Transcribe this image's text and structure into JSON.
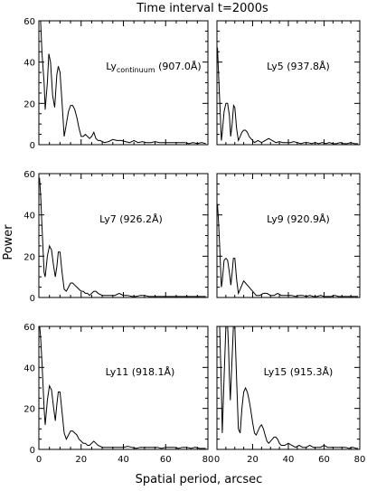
{
  "title": "Time interval t=2000s",
  "ylabel": "Power",
  "xlabel": "Spatial period, arcsec",
  "chart_data": [
    {
      "type": "line",
      "label": "Ly",
      "label_sub": "continuum",
      "label_suffix": " (907.0Å)",
      "xlim": [
        0,
        80
      ],
      "ylim": [
        0,
        60
      ],
      "xticks": [
        "0",
        "20",
        "40",
        "60",
        "80"
      ],
      "yticks": [
        "0",
        "20",
        "40",
        "60"
      ],
      "points": [
        [
          0.4,
          60
        ],
        [
          0.8,
          60
        ],
        [
          1.5,
          44
        ],
        [
          2.5,
          30
        ],
        [
          3,
          17
        ],
        [
          4,
          30
        ],
        [
          4.7,
          44
        ],
        [
          5.5,
          40
        ],
        [
          6.5,
          24
        ],
        [
          7.5,
          18
        ],
        [
          8.5,
          34
        ],
        [
          9.2,
          38
        ],
        [
          10,
          35
        ],
        [
          11,
          20
        ],
        [
          12,
          4
        ],
        [
          13,
          10
        ],
        [
          14,
          16
        ],
        [
          15,
          19
        ],
        [
          16,
          19
        ],
        [
          17,
          17
        ],
        [
          18,
          13
        ],
        [
          19,
          8
        ],
        [
          20,
          4
        ],
        [
          21,
          4
        ],
        [
          22,
          5
        ],
        [
          23,
          4
        ],
        [
          24,
          3
        ],
        [
          25,
          4
        ],
        [
          26,
          6
        ],
        [
          27,
          3
        ],
        [
          28,
          2
        ],
        [
          29,
          2
        ],
        [
          31,
          1
        ],
        [
          33,
          1.5
        ],
        [
          35,
          2.5
        ],
        [
          37,
          2
        ],
        [
          39,
          2
        ],
        [
          41,
          1.5
        ],
        [
          43,
          1
        ],
        [
          45,
          2
        ],
        [
          47,
          1
        ],
        [
          49,
          1.5
        ],
        [
          51,
          1
        ],
        [
          53,
          1
        ],
        [
          55,
          1.5
        ],
        [
          57,
          1
        ],
        [
          59,
          1
        ],
        [
          61,
          1
        ],
        [
          63,
          1
        ],
        [
          65,
          1
        ],
        [
          67,
          1
        ],
        [
          69,
          1
        ],
        [
          71,
          0.5
        ],
        [
          73,
          1
        ],
        [
          75,
          0.5
        ],
        [
          77,
          1
        ],
        [
          79,
          0.5
        ]
      ]
    },
    {
      "type": "line",
      "label": "Ly5 (937.8Å)",
      "xlim": [
        0,
        80
      ],
      "ylim": [
        0,
        60
      ],
      "xticks": [
        "0",
        "20",
        "40",
        "60",
        "80"
      ],
      "yticks": [
        "0",
        "20",
        "40",
        "60"
      ],
      "points": [
        [
          0.3,
          47
        ],
        [
          0.8,
          36
        ],
        [
          1.5,
          22
        ],
        [
          2.5,
          2
        ],
        [
          3,
          6
        ],
        [
          4,
          16
        ],
        [
          5,
          20
        ],
        [
          6,
          20
        ],
        [
          7,
          14
        ],
        [
          7.7,
          4
        ],
        [
          8.5,
          10
        ],
        [
          9.3,
          19
        ],
        [
          10,
          18
        ],
        [
          11,
          8
        ],
        [
          12,
          2
        ],
        [
          13,
          4
        ],
        [
          14,
          6
        ],
        [
          15,
          7
        ],
        [
          16,
          7
        ],
        [
          17,
          6
        ],
        [
          18,
          4
        ],
        [
          19,
          3
        ],
        [
          20,
          2
        ],
        [
          21,
          1
        ],
        [
          23,
          2
        ],
        [
          25,
          1
        ],
        [
          27,
          2
        ],
        [
          29,
          3
        ],
        [
          31,
          2
        ],
        [
          33,
          1
        ],
        [
          35,
          1.5
        ],
        [
          37,
          1
        ],
        [
          39,
          1
        ],
        [
          41,
          1
        ],
        [
          43,
          1.5
        ],
        [
          45,
          1
        ],
        [
          47,
          0.5
        ],
        [
          49,
          1
        ],
        [
          51,
          1
        ],
        [
          53,
          0.5
        ],
        [
          55,
          1
        ],
        [
          57,
          0.5
        ],
        [
          59,
          1
        ],
        [
          61,
          0.5
        ],
        [
          63,
          1
        ],
        [
          65,
          0.5
        ],
        [
          67,
          0.5
        ],
        [
          69,
          1
        ],
        [
          71,
          0.5
        ],
        [
          73,
          0.5
        ],
        [
          75,
          1
        ],
        [
          77,
          0.5
        ],
        [
          79,
          0.5
        ]
      ]
    },
    {
      "type": "line",
      "label": "Ly7 (926.2Å)",
      "xlim": [
        0,
        80
      ],
      "ylim": [
        0,
        60
      ],
      "xticks": [
        "0",
        "20",
        "40",
        "60",
        "80"
      ],
      "yticks": [
        "0",
        "20",
        "40",
        "60"
      ],
      "points": [
        [
          0.3,
          58
        ],
        [
          0.8,
          50
        ],
        [
          1.5,
          34
        ],
        [
          2.5,
          12
        ],
        [
          3,
          10
        ],
        [
          4,
          20
        ],
        [
          5,
          25
        ],
        [
          6,
          23
        ],
        [
          7,
          15
        ],
        [
          7.8,
          10
        ],
        [
          8.5,
          15
        ],
        [
          9.2,
          22
        ],
        [
          10,
          22
        ],
        [
          11,
          12
        ],
        [
          12,
          4
        ],
        [
          13,
          3
        ],
        [
          14,
          5
        ],
        [
          15,
          7
        ],
        [
          16,
          7
        ],
        [
          17,
          6
        ],
        [
          18,
          5
        ],
        [
          19,
          4
        ],
        [
          20,
          3
        ],
        [
          21,
          3
        ],
        [
          22,
          2
        ],
        [
          23,
          2
        ],
        [
          24,
          1
        ],
        [
          25,
          2
        ],
        [
          26,
          3
        ],
        [
          27,
          3
        ],
        [
          28,
          2
        ],
        [
          30,
          1
        ],
        [
          32,
          1
        ],
        [
          34,
          1
        ],
        [
          36,
          1
        ],
        [
          38,
          2
        ],
        [
          40,
          1
        ],
        [
          42,
          1
        ],
        [
          44,
          0.5
        ],
        [
          46,
          0.5
        ],
        [
          48,
          1
        ],
        [
          50,
          1
        ],
        [
          52,
          0.5
        ],
        [
          54,
          0.5
        ],
        [
          56,
          0.5
        ],
        [
          58,
          0.5
        ],
        [
          60,
          0.5
        ],
        [
          62,
          0.5
        ],
        [
          64,
          0.5
        ],
        [
          66,
          0.5
        ],
        [
          68,
          0.5
        ],
        [
          70,
          0.5
        ],
        [
          72,
          0.5
        ],
        [
          74,
          0.5
        ],
        [
          76,
          0.5
        ],
        [
          78,
          0.5
        ],
        [
          79,
          0.5
        ]
      ]
    },
    {
      "type": "line",
      "label": "Ly9 (920.9Å)",
      "xlim": [
        0,
        80
      ],
      "ylim": [
        0,
        60
      ],
      "xticks": [
        "0",
        "20",
        "40",
        "60",
        "80"
      ],
      "yticks": [
        "0",
        "20",
        "40",
        "60"
      ],
      "points": [
        [
          0.3,
          45
        ],
        [
          0.8,
          38
        ],
        [
          1.5,
          25
        ],
        [
          2.5,
          5
        ],
        [
          3,
          8
        ],
        [
          4,
          18
        ],
        [
          5,
          19
        ],
        [
          6,
          18
        ],
        [
          7,
          12
        ],
        [
          7.8,
          6
        ],
        [
          8.5,
          12
        ],
        [
          9.2,
          19
        ],
        [
          10,
          19
        ],
        [
          11,
          9
        ],
        [
          12,
          2
        ],
        [
          13,
          4
        ],
        [
          14,
          6
        ],
        [
          15,
          8
        ],
        [
          16,
          7
        ],
        [
          17,
          6
        ],
        [
          18,
          5
        ],
        [
          19,
          4
        ],
        [
          20,
          3
        ],
        [
          21,
          2
        ],
        [
          22,
          1
        ],
        [
          24,
          1
        ],
        [
          26,
          2
        ],
        [
          28,
          2
        ],
        [
          30,
          1
        ],
        [
          32,
          1
        ],
        [
          34,
          2
        ],
        [
          36,
          1
        ],
        [
          38,
          1
        ],
        [
          40,
          1
        ],
        [
          42,
          1
        ],
        [
          44,
          0.5
        ],
        [
          46,
          1
        ],
        [
          48,
          1
        ],
        [
          50,
          0.5
        ],
        [
          52,
          1
        ],
        [
          54,
          0.5
        ],
        [
          56,
          0.5
        ],
        [
          58,
          1
        ],
        [
          60,
          0.5
        ],
        [
          62,
          0.5
        ],
        [
          64,
          0.5
        ],
        [
          66,
          1
        ],
        [
          68,
          0.5
        ],
        [
          70,
          0.5
        ],
        [
          72,
          0.5
        ],
        [
          74,
          0.5
        ],
        [
          76,
          0.5
        ],
        [
          78,
          0.5
        ],
        [
          79,
          0.5
        ]
      ]
    },
    {
      "type": "line",
      "label": "Ly11 (918.1Å)",
      "xlim": [
        0,
        80
      ],
      "ylim": [
        0,
        60
      ],
      "xticks": [
        "0",
        "20",
        "40",
        "60",
        "80"
      ],
      "yticks": [
        "0",
        "20",
        "40",
        "60"
      ],
      "points": [
        [
          0.4,
          60
        ],
        [
          0.8,
          55
        ],
        [
          1.5,
          42
        ],
        [
          2.5,
          20
        ],
        [
          3,
          12
        ],
        [
          4,
          24
        ],
        [
          5,
          31
        ],
        [
          6,
          29
        ],
        [
          7,
          20
        ],
        [
          7.8,
          14
        ],
        [
          8.5,
          22
        ],
        [
          9.2,
          28
        ],
        [
          10,
          28
        ],
        [
          11,
          18
        ],
        [
          12,
          8
        ],
        [
          13,
          5
        ],
        [
          14,
          7
        ],
        [
          15,
          9
        ],
        [
          16,
          9
        ],
        [
          17,
          8
        ],
        [
          18,
          7
        ],
        [
          19,
          5
        ],
        [
          20,
          4
        ],
        [
          21,
          3
        ],
        [
          22,
          3
        ],
        [
          23,
          2
        ],
        [
          24,
          2
        ],
        [
          25,
          3
        ],
        [
          26,
          4
        ],
        [
          27,
          3
        ],
        [
          28,
          2
        ],
        [
          30,
          1
        ],
        [
          32,
          1
        ],
        [
          34,
          1
        ],
        [
          36,
          1
        ],
        [
          38,
          1
        ],
        [
          40,
          1
        ],
        [
          42,
          1.5
        ],
        [
          44,
          1
        ],
        [
          46,
          0.5
        ],
        [
          48,
          1
        ],
        [
          50,
          1
        ],
        [
          52,
          1
        ],
        [
          54,
          1
        ],
        [
          56,
          1
        ],
        [
          58,
          0.5
        ],
        [
          60,
          1
        ],
        [
          62,
          1
        ],
        [
          64,
          1
        ],
        [
          66,
          0.5
        ],
        [
          68,
          1
        ],
        [
          70,
          1
        ],
        [
          72,
          0.5
        ],
        [
          74,
          1
        ],
        [
          76,
          0.5
        ],
        [
          78,
          0.5
        ],
        [
          79,
          0.5
        ]
      ]
    },
    {
      "type": "line",
      "label": "Ly15 (915.3Å)",
      "xlim": [
        0,
        80
      ],
      "ylim": [
        0,
        60
      ],
      "xticks": [
        "0",
        "20",
        "40",
        "60",
        "80"
      ],
      "yticks": [
        "0",
        "20",
        "40",
        "60"
      ],
      "points": [
        [
          0.5,
          60
        ],
        [
          1.5,
          60
        ],
        [
          2.5,
          30
        ],
        [
          3,
          8
        ],
        [
          4,
          35
        ],
        [
          5,
          60
        ],
        [
          6,
          60
        ],
        [
          6.5,
          50
        ],
        [
          7,
          35
        ],
        [
          7.5,
          24
        ],
        [
          8.5,
          45
        ],
        [
          9.2,
          60
        ],
        [
          10,
          60
        ],
        [
          11,
          35
        ],
        [
          12,
          10
        ],
        [
          13,
          8
        ],
        [
          14,
          20
        ],
        [
          15,
          28
        ],
        [
          16,
          30
        ],
        [
          17,
          28
        ],
        [
          18,
          24
        ],
        [
          19,
          19
        ],
        [
          20,
          13
        ],
        [
          21,
          8
        ],
        [
          22,
          7
        ],
        [
          23,
          9
        ],
        [
          24,
          11
        ],
        [
          25,
          12
        ],
        [
          26,
          10
        ],
        [
          27,
          7
        ],
        [
          28,
          4
        ],
        [
          29,
          3
        ],
        [
          30,
          4
        ],
        [
          31,
          5
        ],
        [
          32,
          6
        ],
        [
          33,
          6
        ],
        [
          34,
          5
        ],
        [
          35,
          3
        ],
        [
          36,
          2
        ],
        [
          38,
          2
        ],
        [
          40,
          3
        ],
        [
          42,
          2
        ],
        [
          44,
          1
        ],
        [
          46,
          2
        ],
        [
          48,
          1
        ],
        [
          50,
          1
        ],
        [
          52,
          2
        ],
        [
          54,
          1
        ],
        [
          56,
          1
        ],
        [
          58,
          1
        ],
        [
          60,
          2
        ],
        [
          62,
          1
        ],
        [
          64,
          1
        ],
        [
          66,
          1
        ],
        [
          68,
          1
        ],
        [
          70,
          1
        ],
        [
          72,
          1
        ],
        [
          74,
          0.5
        ],
        [
          76,
          1
        ],
        [
          78,
          0.5
        ],
        [
          79,
          0.5
        ]
      ]
    }
  ]
}
